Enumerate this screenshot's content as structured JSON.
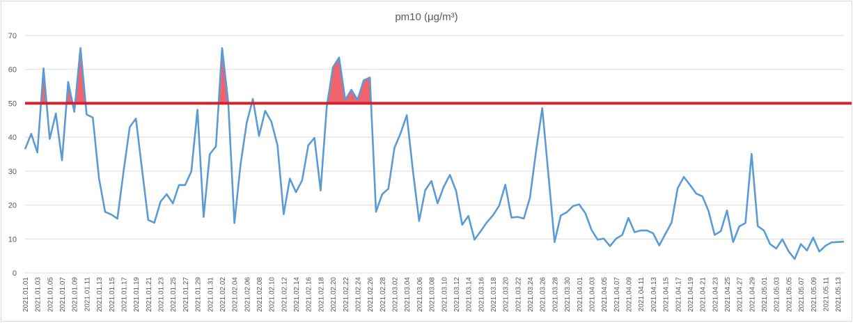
{
  "chart_data": {
    "type": "line",
    "title": "pm10 (μg/m³)",
    "xlabel": "",
    "ylabel": "",
    "ylim": [
      0,
      70
    ],
    "yticks": [
      0,
      10,
      20,
      30,
      40,
      50,
      60,
      70
    ],
    "grid": "horizontal",
    "legend": "none",
    "threshold": 50,
    "colors": {
      "series": "#5b9bd5",
      "threshold": "#d0222f",
      "exceed": "#f0656d",
      "grid": "#d9d9d9",
      "text": "#595959"
    },
    "x": [
      "2021.01.01",
      "2021.01.02",
      "2021.01.03",
      "2021.01.04",
      "2021.01.05",
      "2021.01.06",
      "2021.01.07",
      "2021.01.08",
      "2021.01.09",
      "2021.01.10",
      "2021.01.11",
      "2021.01.12",
      "2021.01.13",
      "2021.01.14",
      "2021.01.15",
      "2021.01.16",
      "2021.01.17",
      "2021.01.18",
      "2021.01.19",
      "2021.01.20",
      "2021.01.21",
      "2021.01.22",
      "2021.01.23",
      "2021.01.24",
      "2021.01.25",
      "2021.01.26",
      "2021.01.27",
      "2021.01.28",
      "2021.01.29",
      "2021.01.30",
      "2021.01.31",
      "2021.02.01",
      "2021.02.02",
      "2021.02.03",
      "2021.02.04",
      "2021.02.05",
      "2021.02.06",
      "2021.02.07",
      "2021.02.08",
      "2021.02.09",
      "2021.02.10",
      "2021.02.11",
      "2021.02.12",
      "2021.02.13",
      "2021.02.14",
      "2021.02.15",
      "2021.02.16",
      "2021.02.17",
      "2021.02.18",
      "2021.02.19",
      "2021.02.20",
      "2021.02.21",
      "2021.02.22",
      "2021.02.23",
      "2021.02.24",
      "2021.02.25",
      "2021.02.26",
      "2021.02.27",
      "2021.02.28",
      "2021.03.01",
      "2021.03.02",
      "2021.03.03",
      "2021.03.04",
      "2021.03.05",
      "2021.03.06",
      "2021.03.07",
      "2021.03.08",
      "2021.03.09",
      "2021.03.10",
      "2021.03.11",
      "2021.03.12",
      "2021.03.13",
      "2021.03.14",
      "2021.03.15",
      "2021.03.16",
      "2021.03.17",
      "2021.03.18",
      "2021.03.19",
      "2021.03.20",
      "2021.03.21",
      "2021.03.22",
      "2021.03.23",
      "2021.03.24",
      "2021.03.25",
      "2021.03.26",
      "2021.03.27",
      "2021.03.28",
      "2021.03.29",
      "2021.03.30",
      "2021.03.31",
      "2021.04.01",
      "2021.04.02",
      "2021.04.03",
      "2021.04.04",
      "2021.04.05",
      "2021.04.06",
      "2021.04.07",
      "2021.04.08",
      "2021.04.09",
      "2021.04.10",
      "2021.04.11",
      "2021.04.12",
      "2021.04.13",
      "2021.04.14",
      "2021.04.15",
      "2021.04.16",
      "2021.04.17",
      "2021.04.18",
      "2021.04.19",
      "2021.04.20",
      "2021.04.21",
      "2021.04.22",
      "2021.04.23",
      "2021.04.24",
      "2021.04.25",
      "2021.04.26",
      "2021.04.27",
      "2021.04.28",
      "2021.04.29",
      "2021.04.30",
      "2021.05.01",
      "2021.05.02",
      "2021.05.03",
      "2021.05.04",
      "2021.05.05",
      "2021.05.06",
      "2021.05.07",
      "2021.05.08",
      "2021.05.09",
      "2021.05.10",
      "2021.05.11",
      "2021.05.12",
      "2021.05.13",
      "2021.05.14"
    ],
    "values": [
      36.5,
      41,
      35.5,
      60.3,
      39.5,
      47,
      33.2,
      56.3,
      47.5,
      66.3,
      46.7,
      45.8,
      28,
      18,
      17.2,
      16,
      30,
      43,
      45.5,
      30.5,
      15.6,
      14.8,
      21,
      23.2,
      20.5,
      25.9,
      25.9,
      29.9,
      48.1,
      16.5,
      35,
      37.3,
      66.3,
      50.3,
      14.7,
      32,
      44.3,
      51.3,
      40.4,
      47.8,
      44.6,
      37.6,
      17.3,
      27.8,
      23.8,
      27.3,
      37.6,
      39.8,
      24.3,
      49,
      60.6,
      63.5,
      51,
      54,
      51,
      56.8,
      57.6,
      18,
      23.2,
      24.8,
      36.9,
      41.2,
      46.5,
      30,
      15.3,
      24.4,
      27.1,
      20.5,
      25.4,
      28.9,
      24.2,
      14.2,
      16.8,
      9.8,
      12.3,
      14.9,
      17,
      19.8,
      26,
      16.3,
      16.5,
      16,
      22.2,
      36,
      48.6,
      29,
      9.1,
      16.9,
      17.9,
      19.7,
      20.2,
      17.6,
      12.7,
      9.8,
      10.1,
      7.9,
      10.1,
      11.2,
      16.2,
      12,
      12.5,
      12.5,
      11.7,
      8.1,
      11.5,
      14.8,
      25,
      28.3,
      25.9,
      23.4,
      22.6,
      18.3,
      11.2,
      12.3,
      18.4,
      9.1,
      13.7,
      14.7,
      35.1,
      13.8,
      12.5,
      8.5,
      7.2,
      9.9,
      6.4,
      4.1,
      8.5,
      6.6,
      10.4,
      6.3,
      8,
      9,
      9.1,
      9.2
    ],
    "xtick_labels": [
      "2021.01.01",
      "2021.01.03",
      "2021.01.05",
      "2021.01.07",
      "2021.01.09",
      "2021.01.11",
      "2021.01.13",
      "2021.01.15",
      "2021.01.17",
      "2021.01.19",
      "2021.01.21",
      "2021.01.23",
      "2021.01.25",
      "2021.01.27",
      "2021.01.29",
      "2021.01.31",
      "2021.02.02",
      "2021.02.04",
      "2021.02.06",
      "2021.02.08",
      "2021.02.10",
      "2021.02.12",
      "2021.02.14",
      "2021.02.16",
      "2021.02.18",
      "2021.02.20",
      "2021.02.22",
      "2021.02.24",
      "2021.02.26",
      "2021.02.28",
      "2021.03.02",
      "2021.03.04",
      "2021.03.06",
      "2021.03.08",
      "2021.03.10",
      "2021.03.12",
      "2021.03.14",
      "2021.03.16",
      "2021.03.18",
      "2021.03.20",
      "2021.03.22",
      "2021.03.24",
      "2021.03.26",
      "2021.03.28",
      "2021.03.30",
      "2021.04.01",
      "2021.04.03",
      "2021.04.05",
      "2021.04.07",
      "2021.04.09",
      "2021.04.11",
      "2021.04.13",
      "2021.04.15",
      "2021.04.17",
      "2021.04.19",
      "2021.04.21",
      "2021.04.23",
      "2021.04.25",
      "2021.04.27",
      "2021.04.29",
      "2021.05.01",
      "2021.05.03",
      "2021.05.05",
      "2021.05.07",
      "2021.05.09",
      "2021.05.11",
      "2021.05.13"
    ]
  }
}
